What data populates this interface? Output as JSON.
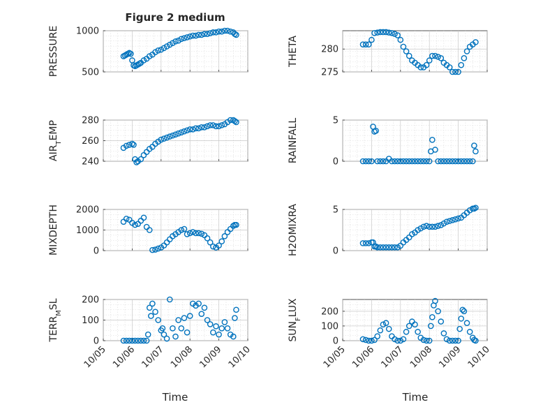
{
  "figure": {
    "title": "Figure 2 medium",
    "xlabel": "Time",
    "x_ticks": [
      "10/05",
      "10/06",
      "10/07",
      "10/08",
      "10/09",
      "10/10"
    ],
    "point_color": "#0072BD"
  },
  "chart_data": [
    {
      "type": "scatter",
      "ylabel": "PRESSURE",
      "ylim": [
        500,
        1000
      ],
      "yticks": [
        500,
        1000
      ],
      "xlim": [
        0,
        5
      ],
      "grid": true,
      "x": [
        0.7,
        0.75,
        0.8,
        0.85,
        0.9,
        0.95,
        1.0,
        1.05,
        1.1,
        1.15,
        1.2,
        1.25,
        1.3,
        1.4,
        1.5,
        1.6,
        1.7,
        1.8,
        1.9,
        2.0,
        2.1,
        2.2,
        2.3,
        2.4,
        2.5,
        2.6,
        2.7,
        2.8,
        2.9,
        3.0,
        3.1,
        3.2,
        3.3,
        3.4,
        3.5,
        3.6,
        3.7,
        3.8,
        3.9,
        4.0,
        4.1,
        4.2,
        4.3,
        4.4,
        4.5,
        4.55,
        4.6
      ],
      "y": [
        690,
        700,
        710,
        720,
        730,
        720,
        640,
        580,
        570,
        580,
        590,
        600,
        610,
        640,
        660,
        690,
        710,
        740,
        760,
        770,
        790,
        810,
        830,
        850,
        870,
        880,
        900,
        910,
        920,
        930,
        940,
        940,
        950,
        950,
        960,
        960,
        970,
        980,
        980,
        990,
        990,
        1000,
        1000,
        990,
        980,
        960,
        950
      ]
    },
    {
      "type": "scatter",
      "ylabel": "THETA",
      "ylim": [
        275,
        284
      ],
      "yticks": [
        275,
        280
      ],
      "xlim": [
        0,
        5
      ],
      "grid": true,
      "x": [
        0.7,
        0.8,
        0.9,
        1.0,
        1.1,
        1.2,
        1.3,
        1.4,
        1.5,
        1.6,
        1.7,
        1.8,
        1.9,
        2.0,
        2.1,
        2.2,
        2.3,
        2.4,
        2.5,
        2.6,
        2.7,
        2.8,
        2.9,
        3.0,
        3.1,
        3.2,
        3.3,
        3.4,
        3.5,
        3.6,
        3.7,
        3.8,
        3.9,
        4.0,
        4.1,
        4.2,
        4.3,
        4.4,
        4.5,
        4.6
      ],
      "y": [
        281,
        281,
        281,
        282,
        283.5,
        283.6,
        283.7,
        283.7,
        283.7,
        283.6,
        283.5,
        283.3,
        283,
        282,
        280.5,
        279.5,
        278.5,
        277.5,
        277,
        276.5,
        276,
        276,
        276.5,
        277.5,
        278.5,
        278.5,
        278.3,
        278,
        277,
        276.5,
        276,
        275,
        275,
        275,
        276.5,
        278,
        279.5,
        280.5,
        281,
        281.5
      ]
    },
    {
      "type": "scatter",
      "ylabel": "AIR_TEMP",
      "ylim": [
        240,
        280
      ],
      "yticks": [
        240,
        260,
        280
      ],
      "xlim": [
        0,
        5
      ],
      "grid": true,
      "x": [
        0.7,
        0.8,
        0.9,
        1.0,
        1.05,
        1.1,
        1.15,
        1.2,
        1.3,
        1.4,
        1.5,
        1.6,
        1.7,
        1.8,
        1.9,
        2.0,
        2.1,
        2.2,
        2.3,
        2.4,
        2.5,
        2.6,
        2.7,
        2.8,
        2.9,
        3.0,
        3.1,
        3.2,
        3.3,
        3.4,
        3.5,
        3.6,
        3.7,
        3.8,
        3.9,
        4.0,
        4.1,
        4.2,
        4.3,
        4.4,
        4.5,
        4.55,
        4.6
      ],
      "y": [
        253,
        255,
        256,
        257,
        256,
        242,
        239,
        240,
        242,
        246,
        249,
        252,
        254,
        257,
        259,
        261,
        262,
        263,
        264,
        265,
        266,
        267,
        268,
        269,
        270,
        271,
        271,
        272,
        272,
        273,
        273,
        274,
        275,
        275,
        274,
        274,
        275,
        276,
        278,
        280,
        280,
        279,
        278
      ]
    },
    {
      "type": "scatter",
      "ylabel": "RAINFALL",
      "ylim": [
        0,
        5
      ],
      "yticks": [
        0,
        5
      ],
      "xlim": [
        0,
        5
      ],
      "grid": true,
      "x": [
        0.7,
        0.8,
        0.9,
        1.0,
        1.05,
        1.1,
        1.15,
        1.2,
        1.3,
        1.4,
        1.5,
        1.6,
        1.7,
        1.8,
        1.9,
        2.0,
        2.1,
        2.2,
        2.3,
        2.4,
        2.5,
        2.6,
        2.7,
        2.8,
        2.9,
        3.0,
        3.05,
        3.1,
        3.2,
        3.3,
        3.4,
        3.5,
        3.6,
        3.7,
        3.8,
        3.9,
        4.0,
        4.1,
        4.2,
        4.3,
        4.4,
        4.5,
        4.55,
        4.6
      ],
      "y": [
        0,
        0,
        0,
        0,
        4.2,
        3.6,
        3.7,
        0,
        0,
        0,
        0,
        0.3,
        0,
        0,
        0,
        0,
        0,
        0,
        0,
        0,
        0,
        0,
        0,
        0,
        0,
        0,
        1.2,
        2.6,
        1.4,
        0,
        0,
        0,
        0,
        0,
        0,
        0,
        0,
        0,
        0,
        0,
        0,
        0,
        1.9,
        1.2
      ]
    },
    {
      "type": "scatter",
      "ylabel": "MIXDEPTH",
      "ylim": [
        0,
        2000
      ],
      "yticks": [
        0,
        1000,
        2000
      ],
      "xlim": [
        0,
        5
      ],
      "grid": true,
      "x": [
        0.7,
        0.8,
        0.9,
        1.0,
        1.1,
        1.2,
        1.3,
        1.4,
        1.5,
        1.6,
        1.7,
        1.8,
        1.9,
        2.0,
        2.1,
        2.2,
        2.3,
        2.4,
        2.5,
        2.6,
        2.7,
        2.8,
        2.9,
        3.0,
        3.1,
        3.2,
        3.3,
        3.4,
        3.5,
        3.6,
        3.7,
        3.8,
        3.9,
        4.0,
        4.1,
        4.2,
        4.3,
        4.4,
        4.5,
        4.55,
        4.6
      ],
      "y": [
        1400,
        1550,
        1500,
        1350,
        1250,
        1300,
        1450,
        1600,
        1150,
        1000,
        30,
        50,
        100,
        150,
        250,
        400,
        550,
        700,
        800,
        900,
        1000,
        1050,
        800,
        850,
        900,
        850,
        850,
        820,
        750,
        600,
        400,
        200,
        150,
        250,
        450,
        700,
        900,
        1050,
        1200,
        1250,
        1250
      ]
    },
    {
      "type": "scatter",
      "ylabel": "H2OMIXRA",
      "ylim": [
        0,
        5
      ],
      "yticks": [
        0,
        5
      ],
      "xlim": [
        0,
        5
      ],
      "grid": true,
      "x": [
        0.7,
        0.8,
        0.9,
        1.0,
        1.05,
        1.1,
        1.15,
        1.2,
        1.3,
        1.4,
        1.5,
        1.6,
        1.7,
        1.8,
        1.9,
        2.0,
        2.1,
        2.2,
        2.3,
        2.4,
        2.5,
        2.6,
        2.7,
        2.8,
        2.9,
        3.0,
        3.1,
        3.2,
        3.3,
        3.4,
        3.5,
        3.6,
        3.7,
        3.8,
        3.9,
        4.0,
        4.1,
        4.2,
        4.3,
        4.4,
        4.5,
        4.55,
        4.6
      ],
      "y": [
        0.9,
        0.9,
        0.9,
        1.0,
        1.0,
        0.5,
        0.5,
        0.4,
        0.4,
        0.4,
        0.4,
        0.4,
        0.4,
        0.4,
        0.4,
        0.6,
        1.0,
        1.3,
        1.6,
        2.0,
        2.2,
        2.5,
        2.7,
        2.9,
        3.0,
        2.9,
        2.9,
        2.9,
        3.0,
        3.1,
        3.3,
        3.5,
        3.6,
        3.7,
        3.8,
        3.9,
        4.0,
        4.3,
        4.6,
        4.9,
        5.1,
        5.1,
        5.2
      ]
    },
    {
      "type": "scatter",
      "ylabel": "TERR_MSL",
      "ylim": [
        0,
        200
      ],
      "yticks": [
        0,
        100,
        200
      ],
      "xlim": [
        0,
        5
      ],
      "grid": true,
      "x": [
        0.7,
        0.8,
        0.9,
        1.0,
        1.1,
        1.2,
        1.3,
        1.4,
        1.5,
        1.55,
        1.6,
        1.65,
        1.7,
        1.8,
        1.9,
        2.0,
        2.05,
        2.1,
        2.2,
        2.3,
        2.4,
        2.5,
        2.6,
        2.7,
        2.8,
        2.9,
        3.0,
        3.1,
        3.2,
        3.3,
        3.4,
        3.5,
        3.6,
        3.7,
        3.8,
        3.9,
        4.0,
        4.1,
        4.2,
        4.3,
        4.4,
        4.5,
        4.55,
        4.6
      ],
      "y": [
        0,
        0,
        0,
        0,
        0,
        0,
        0,
        0,
        0,
        30,
        160,
        120,
        180,
        140,
        100,
        50,
        60,
        30,
        10,
        200,
        60,
        20,
        100,
        60,
        110,
        40,
        120,
        180,
        170,
        180,
        130,
        160,
        100,
        80,
        40,
        70,
        30,
        60,
        90,
        60,
        30,
        20,
        110,
        150
      ]
    },
    {
      "type": "scatter",
      "ylabel": "SUN_FLUX",
      "ylim": [
        0,
        280
      ],
      "yticks": [
        0,
        100,
        200
      ],
      "xlim": [
        0,
        5
      ],
      "grid": true,
      "x": [
        0.7,
        0.8,
        0.9,
        1.0,
        1.1,
        1.2,
        1.3,
        1.4,
        1.5,
        1.6,
        1.7,
        1.8,
        1.9,
        2.0,
        2.1,
        2.2,
        2.3,
        2.4,
        2.5,
        2.6,
        2.7,
        2.8,
        2.9,
        3.0,
        3.05,
        3.1,
        3.15,
        3.2,
        3.3,
        3.4,
        3.5,
        3.6,
        3.7,
        3.8,
        3.9,
        4.0,
        4.05,
        4.1,
        4.15,
        4.2,
        4.3,
        4.4,
        4.5,
        4.55,
        4.6
      ],
      "y": [
        10,
        5,
        0,
        0,
        5,
        30,
        70,
        110,
        120,
        80,
        30,
        10,
        0,
        0,
        10,
        60,
        100,
        130,
        110,
        60,
        20,
        5,
        0,
        0,
        100,
        160,
        240,
        270,
        200,
        130,
        50,
        10,
        0,
        0,
        0,
        0,
        80,
        150,
        210,
        200,
        120,
        60,
        20,
        5,
        0
      ]
    }
  ]
}
